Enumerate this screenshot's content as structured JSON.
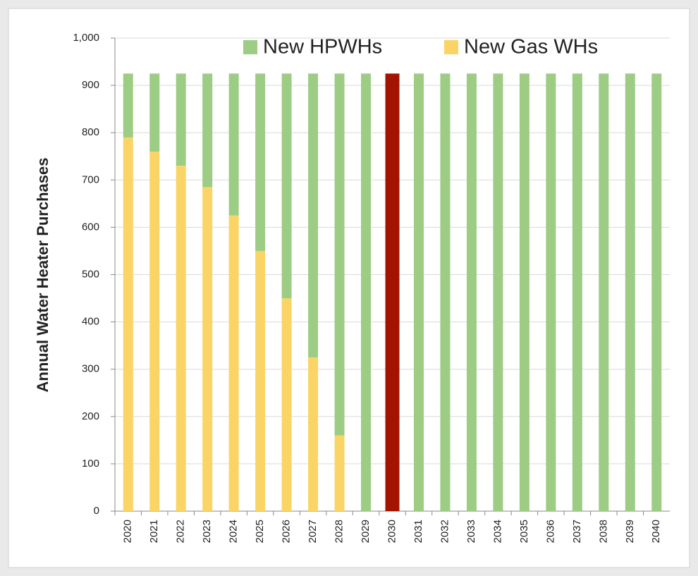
{
  "chart_data": {
    "type": "stacked_bar",
    "y_label": "Annual Water Heater Purchases",
    "categories": [
      "2020",
      "2021",
      "2022",
      "2023",
      "2024",
      "2025",
      "2026",
      "2027",
      "2028",
      "2029",
      "2030",
      "2031",
      "2032",
      "2033",
      "2034",
      "2035",
      "2036",
      "2037",
      "2038",
      "2039",
      "2040"
    ],
    "series": [
      {
        "name": "New HPWHs",
        "color": "#9dcc84",
        "values": [
          135,
          165,
          195,
          240,
          300,
          375,
          475,
          600,
          765,
          925,
          925,
          925,
          925,
          925,
          925,
          925,
          925,
          925,
          925,
          925,
          925
        ]
      },
      {
        "name": "New Gas WHs",
        "color": "#fbd466",
        "values": [
          790,
          760,
          730,
          685,
          625,
          550,
          450,
          325,
          160,
          0,
          0,
          0,
          0,
          0,
          0,
          0,
          0,
          0,
          0,
          0,
          0
        ]
      }
    ],
    "highlight": {
      "category": "2030",
      "color": "#a31400"
    },
    "ylim": [
      0,
      1000
    ],
    "yticks": [
      0,
      100,
      200,
      300,
      400,
      500,
      600,
      700,
      800,
      900,
      {
        "value": 1000,
        "label": "1,000"
      }
    ],
    "grid": true,
    "legend": "top"
  }
}
